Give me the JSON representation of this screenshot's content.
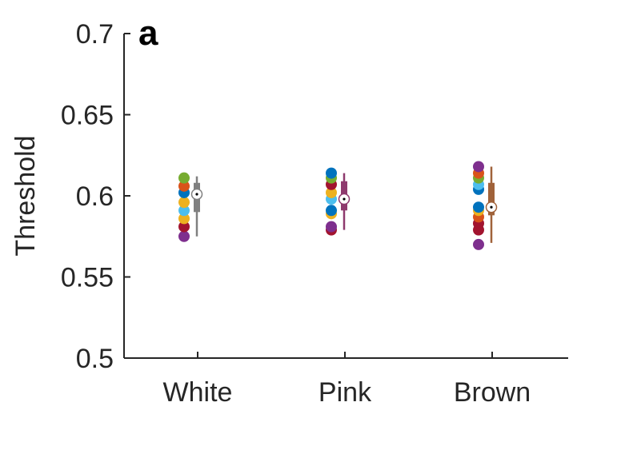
{
  "panel_label": "a",
  "chart_data": {
    "type": "scatter",
    "subtype": "strip plot with box summaries",
    "title": "",
    "xlabel": "",
    "ylabel": "Threshold",
    "ylim": [
      0.5,
      0.7
    ],
    "yticks": [
      0.5,
      0.55,
      0.6,
      0.65,
      0.7
    ],
    "ytick_labels": [
      "0.5",
      "0.55",
      "0.6",
      "0.65",
      "0.7"
    ],
    "categories": [
      "White",
      "Pink",
      "Brown"
    ],
    "grid": false,
    "legend": "none",
    "point_colors": [
      "#7E2F8E",
      "#A2142F",
      "#77AC30",
      "#4DBEEE",
      "#EDB120",
      "#D95319",
      "#0072BD"
    ],
    "series": [
      {
        "category": "White",
        "box_color": "#808080",
        "points": [
          {
            "y": 0.575,
            "color": "#7E2F8E"
          },
          {
            "y": 0.581,
            "color": "#A2142F"
          },
          {
            "y": 0.586,
            "color": "#EDB120"
          },
          {
            "y": 0.591,
            "color": "#4DBEEE"
          },
          {
            "y": 0.596,
            "color": "#EDB120"
          },
          {
            "y": 0.602,
            "color": "#0072BD"
          },
          {
            "y": 0.606,
            "color": "#D95319"
          },
          {
            "y": 0.611,
            "color": "#77AC30"
          }
        ],
        "box": {
          "min": 0.575,
          "q1": 0.59,
          "median": 0.601,
          "q3": 0.608,
          "max": 0.612
        }
      },
      {
        "category": "Pink",
        "box_color": "#8E3A6E",
        "points": [
          {
            "y": 0.579,
            "color": "#A2142F"
          },
          {
            "y": 0.581,
            "color": "#7E2F8E"
          },
          {
            "y": 0.589,
            "color": "#EDB120"
          },
          {
            "y": 0.591,
            "color": "#0072BD"
          },
          {
            "y": 0.598,
            "color": "#4DBEEE"
          },
          {
            "y": 0.602,
            "color": "#EDB120"
          },
          {
            "y": 0.607,
            "color": "#A2142F"
          },
          {
            "y": 0.611,
            "color": "#77AC30"
          },
          {
            "y": 0.614,
            "color": "#0072BD"
          }
        ],
        "box": {
          "min": 0.579,
          "q1": 0.591,
          "median": 0.598,
          "q3": 0.609,
          "max": 0.614
        }
      },
      {
        "category": "Brown",
        "box_color": "#A0623A",
        "points": [
          {
            "y": 0.57,
            "color": "#7E2F8E"
          },
          {
            "y": 0.579,
            "color": "#A2142F"
          },
          {
            "y": 0.583,
            "color": "#A2142F"
          },
          {
            "y": 0.587,
            "color": "#D95319"
          },
          {
            "y": 0.591,
            "color": "#EDB120"
          },
          {
            "y": 0.593,
            "color": "#0072BD"
          },
          {
            "y": 0.604,
            "color": "#0072BD"
          },
          {
            "y": 0.607,
            "color": "#4DBEEE"
          },
          {
            "y": 0.611,
            "color": "#77AC30"
          },
          {
            "y": 0.614,
            "color": "#D95319"
          },
          {
            "y": 0.618,
            "color": "#7E2F8E"
          }
        ],
        "box": {
          "min": 0.571,
          "q1": 0.588,
          "median": 0.593,
          "q3": 0.608,
          "max": 0.618
        }
      }
    ]
  }
}
